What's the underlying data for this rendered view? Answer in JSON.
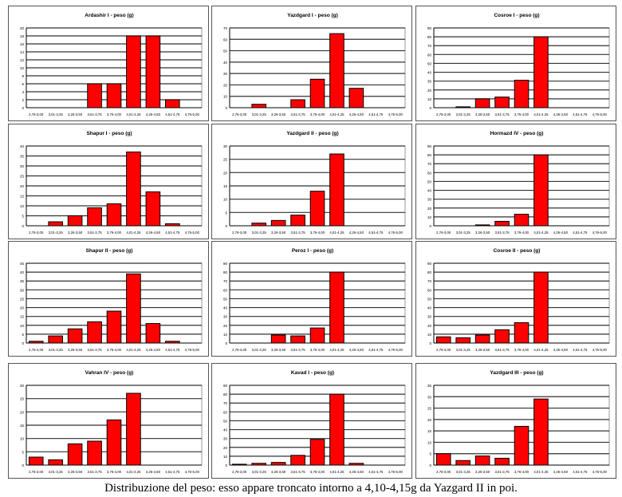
{
  "caption": "Distribuzione del peso: esso appare troncato intorno a 4,10-4,15g da Yazgard II in poi.",
  "colors": {
    "bar": "#ff0000",
    "bar_stroke": "#000000",
    "grid": "#000000"
  },
  "chart_data": [
    {
      "type": "bar",
      "title": "Ardashir I - peso (g)",
      "categories": [
        "2,76-3,00",
        "3,01-3,25",
        "3,26-3,50",
        "3,51-3,75",
        "3,76-4,00",
        "4,01-4,25",
        "4,26-4,50",
        "4,51-4,75",
        "4,76-5,00"
      ],
      "values": [
        0,
        0,
        0,
        6,
        6,
        18,
        18,
        2,
        0
      ],
      "ylim": [
        0,
        20
      ],
      "ystep": 2,
      "grid": true
    },
    {
      "type": "bar",
      "title": "Yazdgard I - peso (g)",
      "categories": [
        "2,76-3,00",
        "3,01-3,25",
        "3,26-3,50",
        "3,51-3,75",
        "3,76-4,00",
        "4,01-4,25",
        "4,26-4,50",
        "4,51-4,75",
        "4,76-5,00"
      ],
      "values": [
        0,
        3,
        0,
        7,
        25,
        65,
        17,
        0,
        0
      ],
      "ylim": [
        0,
        70
      ],
      "ystep": 10,
      "grid": true
    },
    {
      "type": "bar",
      "title": "Cosroe I - peso (g)",
      "categories": [
        "2,76-3,00",
        "3,01-3,25",
        "3,26-3,50",
        "3,51-3,75",
        "3,76-4,00",
        "4,01-4,25",
        "4,26-4,50",
        "4,51-4,75",
        "4,76-5,00"
      ],
      "values": [
        0,
        1,
        10,
        12,
        31,
        80,
        0,
        0,
        0
      ],
      "ylim": [
        0,
        90
      ],
      "ystep": 10,
      "grid": true
    },
    {
      "type": "bar",
      "title": "Shapur I - peso (g)",
      "categories": [
        "2,76-3,00",
        "3,01-3,25",
        "3,26-3,50",
        "3,51-3,75",
        "3,76-4,00",
        "4,01-4,25",
        "4,26-4,50",
        "4,51-4,75",
        "4,76-5,00"
      ],
      "values": [
        0,
        2,
        5,
        9,
        11,
        37,
        17,
        1,
        0
      ],
      "ylim": [
        0,
        40
      ],
      "ystep": 5,
      "grid": true
    },
    {
      "type": "bar",
      "title": "Yazdgard II - peso (g)",
      "categories": [
        "2,76-3,00",
        "3,01-3,25",
        "3,26-3,50",
        "3,51-3,75",
        "3,76-4,00",
        "4,01-4,25",
        "4,26-4,50",
        "4,51-4,75",
        "4,76-5,00"
      ],
      "values": [
        0,
        1,
        2,
        4,
        13,
        27,
        0,
        0,
        0
      ],
      "ylim": [
        0,
        30
      ],
      "ystep": 5,
      "grid": true
    },
    {
      "type": "bar",
      "title": "Hormazd IV - peso (g)",
      "categories": [
        "2,76-3,00",
        "3,01-3,25",
        "3,26-3,50",
        "3,51-3,75",
        "3,76-4,00",
        "4,01-4,25",
        "4,26-4,50",
        "4,51-4,75",
        "4,76-5,00"
      ],
      "values": [
        0,
        0,
        1,
        5,
        13,
        80,
        0,
        0,
        0
      ],
      "ylim": [
        0,
        90
      ],
      "ystep": 10,
      "grid": true
    },
    {
      "type": "bar",
      "title": "Shapur II - peso (g)",
      "categories": [
        "2,76-3,00",
        "3,01-3,25",
        "3,26-3,50",
        "3,51-3,75",
        "3,76-4,00",
        "4,01-4,25",
        "4,26-4,50",
        "4,51-4,75",
        "4,76-5,00"
      ],
      "values": [
        1,
        4,
        8,
        12,
        18,
        39,
        11,
        1,
        0
      ],
      "ylim": [
        0,
        45
      ],
      "ystep": 5,
      "grid": true
    },
    {
      "type": "bar",
      "title": "Peroz I - peso (g)",
      "categories": [
        "2,76-3,00",
        "3,01-3,25",
        "3,26-3,50",
        "3,51-3,75",
        "3,76-4,00",
        "4,01-4,25",
        "4,26-4,50",
        "4,51-4,75",
        "4,76-5,00"
      ],
      "values": [
        0,
        0,
        9,
        8,
        17,
        80,
        0,
        0,
        0
      ],
      "ylim": [
        0,
        90
      ],
      "ystep": 10,
      "grid": true
    },
    {
      "type": "bar",
      "title": "Cosroe II - peso (g)",
      "categories": [
        "2,76-3,00",
        "3,01-3,25",
        "3,26-3,50",
        "3,51-3,75",
        "3,76-4,00",
        "4,01-4,25",
        "4,26-4,50",
        "4,51-4,75",
        "4,76-5,00"
      ],
      "values": [
        7,
        6,
        9,
        15,
        23,
        80,
        0,
        0,
        0
      ],
      "ylim": [
        0,
        90
      ],
      "ystep": 10,
      "grid": true
    },
    {
      "type": "bar",
      "title": "Vahran IV - peso (g)",
      "categories": [
        "2,76-3,00",
        "3,01-3,25",
        "3,26-3,50",
        "3,51-3,75",
        "3,76-4,00",
        "4,01-4,25",
        "4,26-4,50",
        "4,51-4,75",
        "4,76-5,00"
      ],
      "values": [
        3,
        2,
        8,
        9,
        17,
        27,
        0,
        0,
        0
      ],
      "ylim": [
        0,
        30
      ],
      "ystep": 5,
      "grid": true
    },
    {
      "type": "bar",
      "title": "Kavad I - peso (g)",
      "categories": [
        "2,76-3,00",
        "3,01-3,25",
        "3,26-3,50",
        "3,51-3,75",
        "3,76-4,00",
        "4,01-4,25",
        "4,26-4,50",
        "4,51-4,75",
        "4,76-5,00"
      ],
      "values": [
        1,
        2,
        3,
        11,
        29,
        80,
        2,
        0,
        0
      ],
      "ylim": [
        0,
        90
      ],
      "ystep": 10,
      "grid": true
    },
    {
      "type": "bar",
      "title": "Yazdgard III - peso (g)",
      "categories": [
        "2,76-3,00",
        "3,01-3,25",
        "3,26-3,50",
        "3,51-3,75",
        "3,76-4,00",
        "4,01-4,25",
        "4,26-4,50",
        "4,51-4,75",
        "4,76-5,00"
      ],
      "values": [
        5,
        2,
        4,
        3,
        17,
        29,
        0,
        0,
        0
      ],
      "ylim": [
        0,
        35
      ],
      "ystep": 5,
      "grid": true
    }
  ]
}
